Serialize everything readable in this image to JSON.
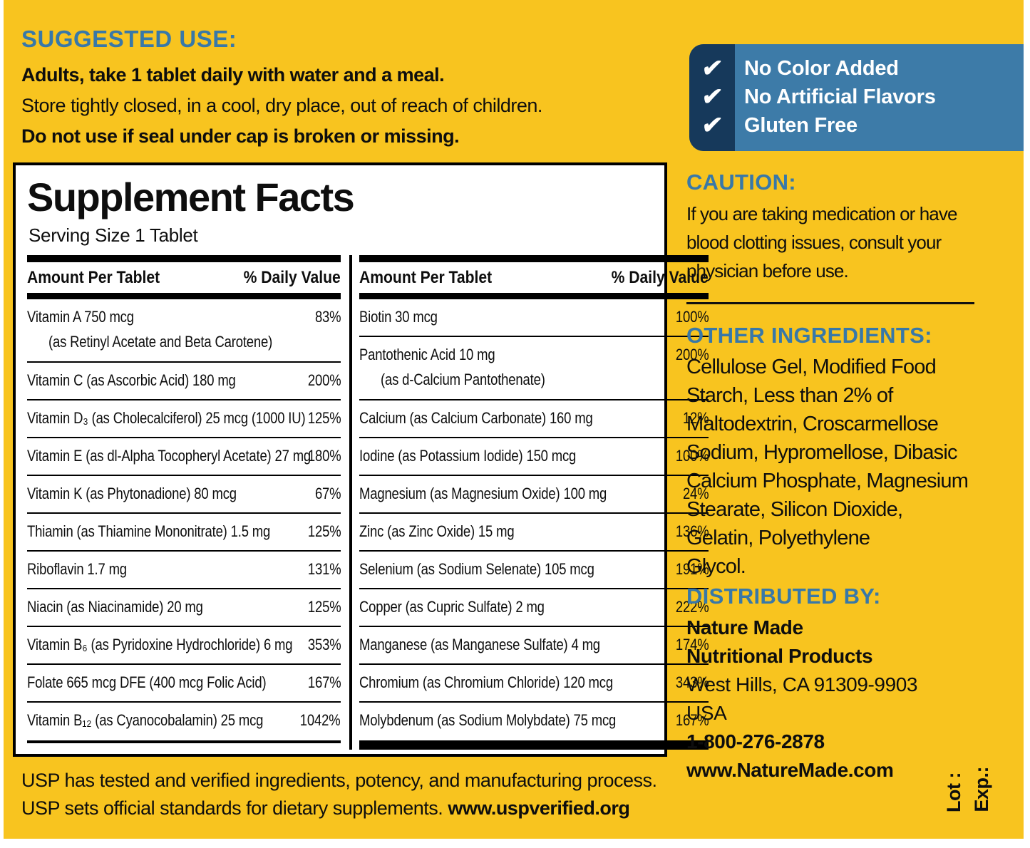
{
  "colors": {
    "label_yellow": "#F8C41F",
    "heading_blue": "#3878A8",
    "badge_blue": "#3D7BA8",
    "badge_navy": "#16395B",
    "text_black": "#0E0E0E"
  },
  "suggested_use": {
    "heading": "SUGGESTED USE:",
    "line1": "Adults, take 1 tablet daily with water and a meal.",
    "line2": "Store tightly closed, in a cool, dry place, out of reach of children.",
    "line3": "Do not use if seal under cap is broken or missing."
  },
  "badges": {
    "check": "✔",
    "items": [
      "No Color Added",
      "No Artificial Flavors",
      "Gluten Free"
    ]
  },
  "facts": {
    "title": "Supplement Facts",
    "serving": "Serving Size 1 Tablet",
    "col_header_amount": "Amount Per Tablet",
    "col_header_dv": "% Daily Value",
    "left_rows": [
      {
        "name": "Vitamin A  750 mcg",
        "dv": "83%",
        "sub": "(as Retinyl Acetate and Beta Carotene)"
      },
      {
        "name": "Vitamin C (as Ascorbic Acid)  180 mg",
        "dv": "200%"
      },
      {
        "name": "Vitamin D₃ (as Cholecalciferol) 25 mcg (1000 IU)",
        "dv": "125%"
      },
      {
        "name": "Vitamin E (as dl-Alpha Tocopheryl Acetate)  27 mg",
        "dv": "180%"
      },
      {
        "name": "Vitamin K (as Phytonadione)  80 mcg",
        "dv": "67%"
      },
      {
        "name": "Thiamin (as Thiamine Mononitrate)  1.5 mg",
        "dv": "125%"
      },
      {
        "name": "Riboflavin  1.7 mg",
        "dv": "131%"
      },
      {
        "name": "Niacin (as Niacinamide)  20 mg",
        "dv": "125%"
      },
      {
        "name": "Vitamin B₆ (as Pyridoxine Hydrochloride)  6 mg",
        "dv": "353%"
      },
      {
        "name": "Folate  665 mcg DFE (400 mcg Folic Acid)",
        "dv": "167%"
      },
      {
        "name": "Vitamin B₁₂ (as Cyanocobalamin)  25 mcg",
        "dv": "1042%"
      }
    ],
    "right_rows": [
      {
        "name": "Biotin  30 mcg",
        "dv": "100%"
      },
      {
        "name": "Pantothenic Acid  10 mg",
        "dv": "200%",
        "sub": "(as d-Calcium Pantothenate)"
      },
      {
        "name": "Calcium (as Calcium Carbonate)  160 mg",
        "dv": "12%"
      },
      {
        "name": "Iodine (as Potassium Iodide)  150 mcg",
        "dv": "100%"
      },
      {
        "name": "Magnesium (as Magnesium Oxide)  100 mg",
        "dv": "24%"
      },
      {
        "name": "Zinc (as Zinc Oxide)  15 mg",
        "dv": "136%"
      },
      {
        "name": "Selenium (as Sodium Selenate)  105 mcg",
        "dv": "191%"
      },
      {
        "name": "Copper (as Cupric Sulfate)  2 mg",
        "dv": "222%"
      },
      {
        "name": "Manganese (as Manganese Sulfate)  4 mg",
        "dv": "174%"
      },
      {
        "name": "Chromium (as Chromium Chloride)  120 mcg",
        "dv": "343%"
      },
      {
        "name": "Molybdenum (as Sodium Molybdate)  75 mcg",
        "dv": "167%"
      }
    ]
  },
  "caution": {
    "heading": "CAUTION:",
    "body": "If you are taking medication or have\nblood clotting issues, consult your\nphysician before use."
  },
  "other_ingredients": {
    "heading": "OTHER INGREDIENTS:",
    "body": "Cellulose Gel, Modified Food\nStarch, Less than 2% of\nMaltodextrin, Croscarmellose\nSodium, Hypromellose, Dibasic\nCalcium Phosphate, Magnesium\nStearate, Silicon Dioxide,\nGelatin, Polyethylene\nGlycol."
  },
  "distributed": {
    "heading": "DISTRIBUTED BY:",
    "line1": "Nature Made",
    "line2": "Nutritional Products",
    "line3": "West Hills, CA 91309-9903",
    "line4": "USA",
    "line5": "1-800-276-2878",
    "line6": "www.NatureMade.com"
  },
  "usp": {
    "line1": "USP has tested and verified ingredients, potency, and manufacturing process.",
    "line2_text": "USP sets official standards for dietary supplements. ",
    "line2_link": "www.uspverified.org"
  },
  "lot_exp": {
    "lot": "Lot :",
    "exp": "Exp.:"
  }
}
